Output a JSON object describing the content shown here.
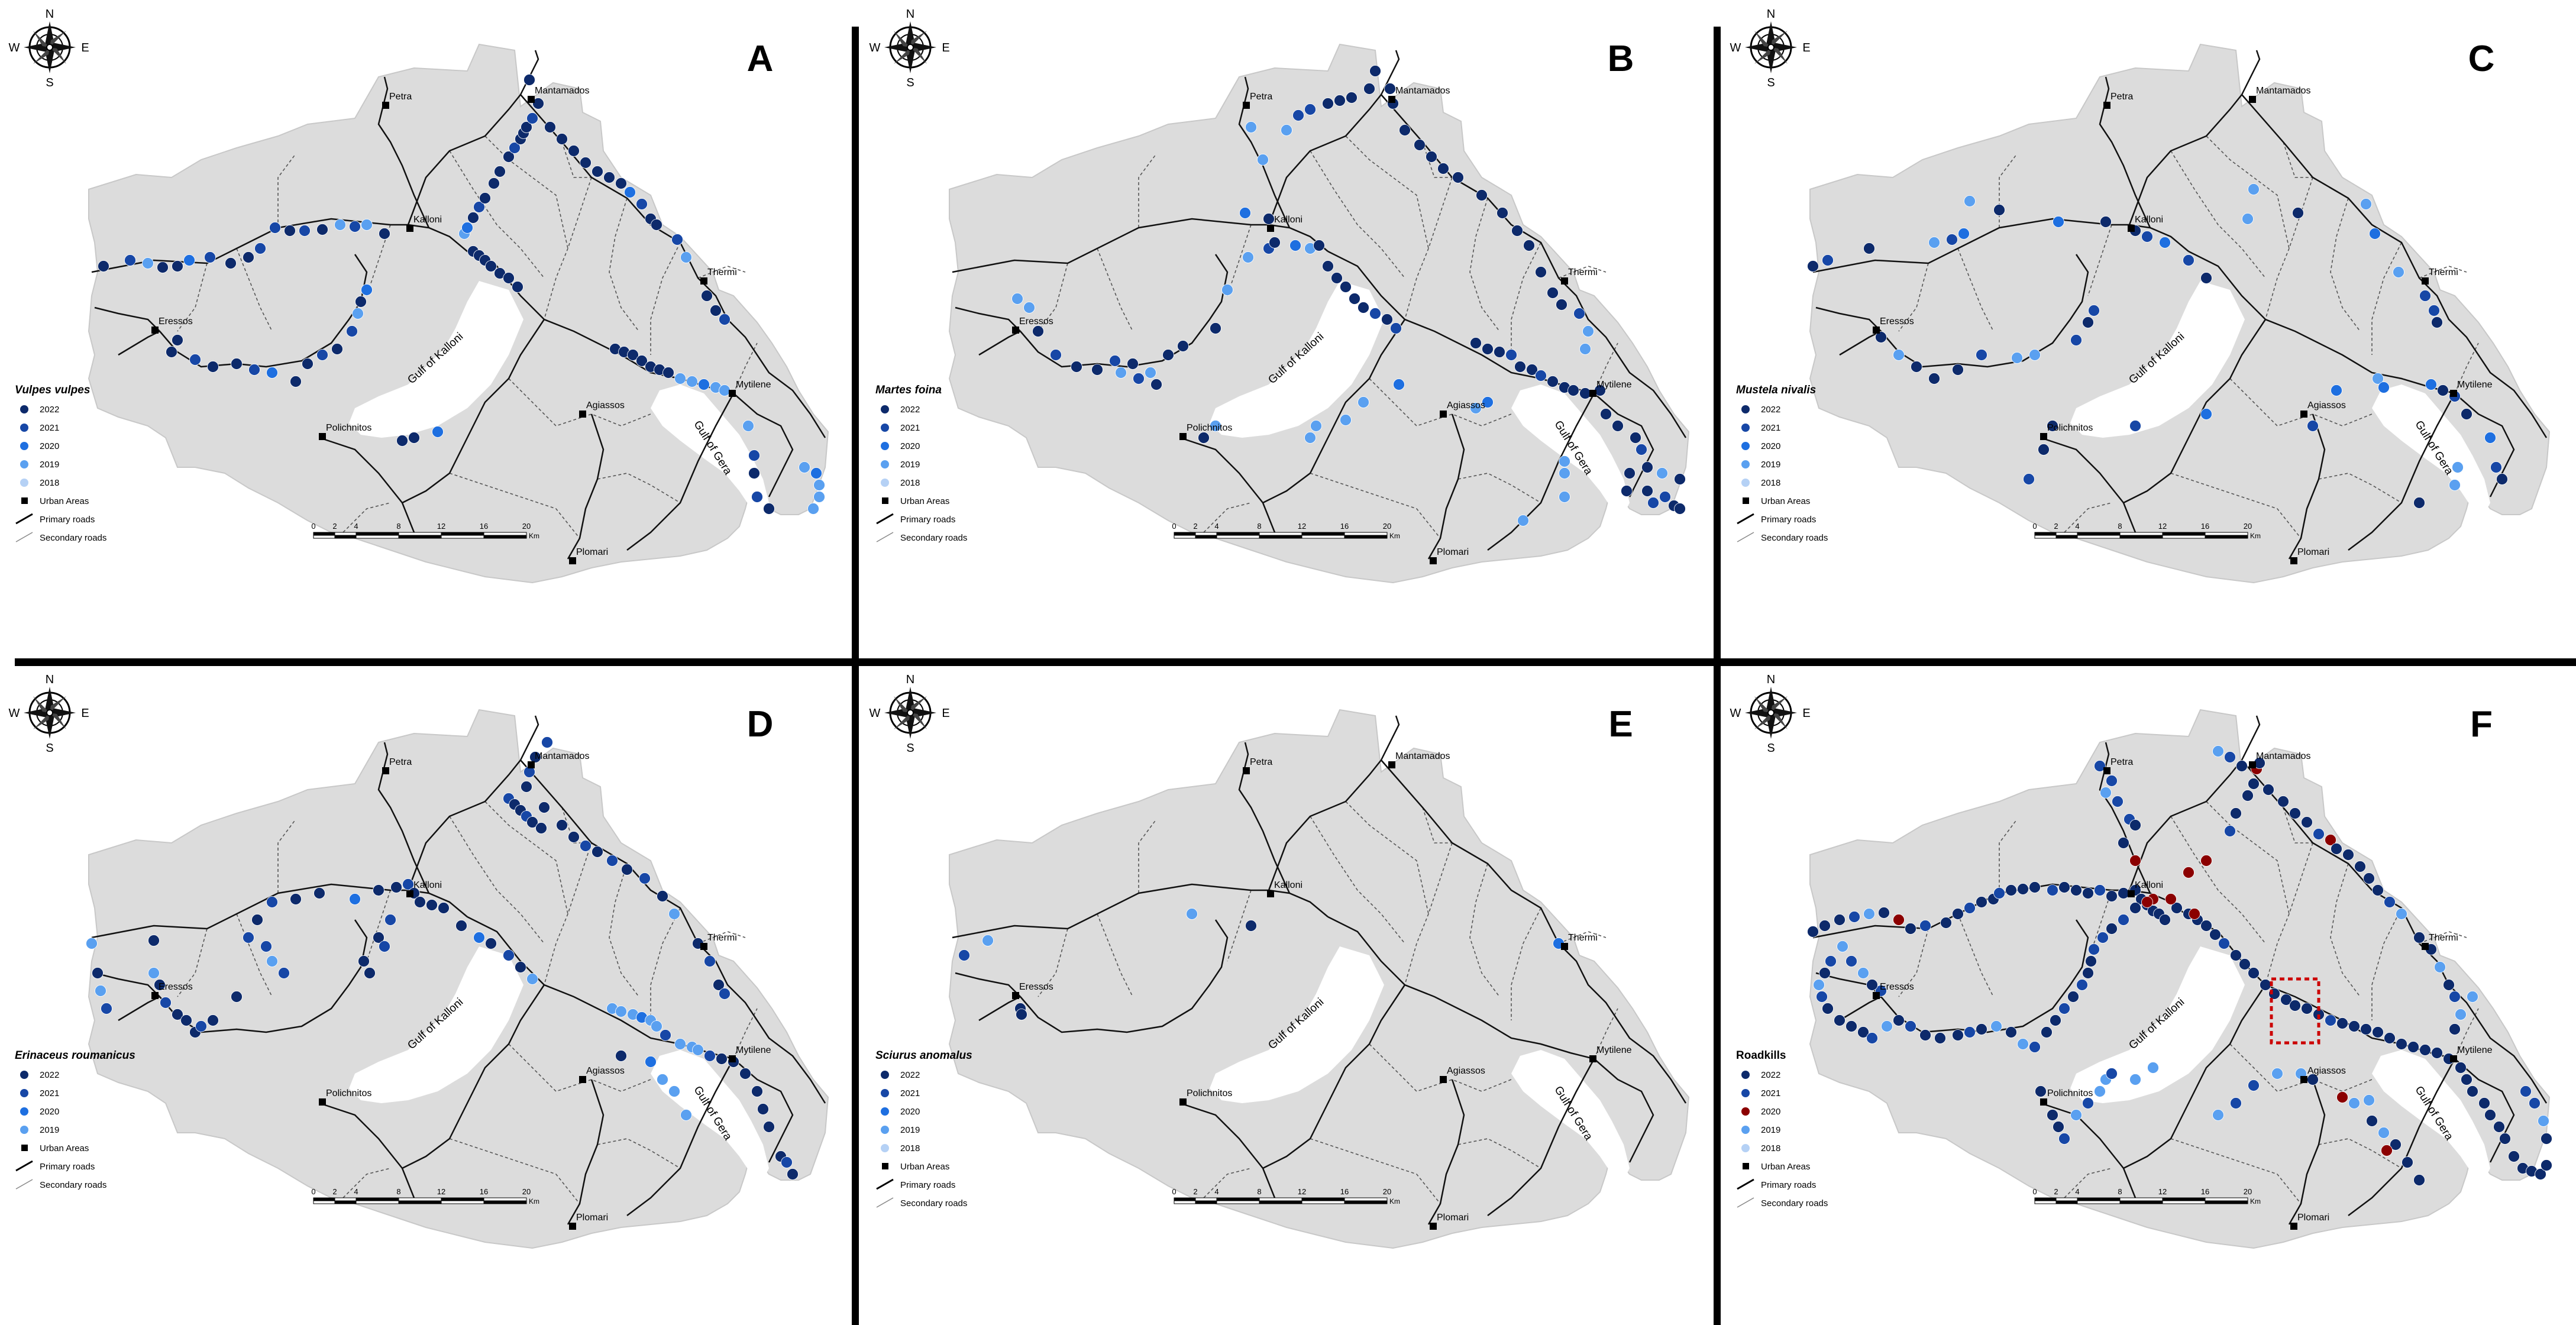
{
  "figure": {
    "panels": [
      {
        "letter": "A",
        "species": "Vulpes vulpes",
        "legend_entries": [
          {
            "label": "2022",
            "color": "#0d2a6b"
          },
          {
            "label": "2021",
            "color": "#1747a6"
          },
          {
            "label": "2020",
            "color": "#1e6fe0"
          },
          {
            "label": "2019",
            "color": "#5aa0f0"
          },
          {
            "label": "2018",
            "color": "#b5d1f5"
          }
        ]
      },
      {
        "letter": "B",
        "species": "Martes foina",
        "legend_entries": [
          {
            "label": "2022",
            "color": "#0d2a6b"
          },
          {
            "label": "2021",
            "color": "#1747a6"
          },
          {
            "label": "2020",
            "color": "#1e6fe0"
          },
          {
            "label": "2019",
            "color": "#5aa0f0"
          },
          {
            "label": "2018",
            "color": "#b5d1f5"
          }
        ]
      },
      {
        "letter": "C",
        "species": "Mustela nivalis",
        "legend_entries": [
          {
            "label": "2022",
            "color": "#0d2a6b"
          },
          {
            "label": "2021",
            "color": "#1747a6"
          },
          {
            "label": "2020",
            "color": "#1e6fe0"
          },
          {
            "label": "2019",
            "color": "#5aa0f0"
          },
          {
            "label": "2018",
            "color": "#b5d1f5"
          }
        ]
      },
      {
        "letter": "D",
        "species": "Erinaceus roumanicus",
        "legend_entries": [
          {
            "label": "2022",
            "color": "#0d2a6b"
          },
          {
            "label": "2021",
            "color": "#1747a6"
          },
          {
            "label": "2020",
            "color": "#1e6fe0"
          },
          {
            "label": "2019",
            "color": "#5aa0f0"
          }
        ]
      },
      {
        "letter": "E",
        "species": "Sciurus anomalus",
        "legend_entries": [
          {
            "label": "2022",
            "color": "#0d2a6b"
          },
          {
            "label": "2021",
            "color": "#1747a6"
          },
          {
            "label": "2020",
            "color": "#1e6fe0"
          },
          {
            "label": "2019",
            "color": "#5aa0f0"
          },
          {
            "label": "2018",
            "color": "#b5d1f5"
          }
        ]
      },
      {
        "letter": "F",
        "species": "Roadkills",
        "legend_entries": [
          {
            "label": "2022",
            "color": "#0d2a6b"
          },
          {
            "label": "2021",
            "color": "#1747a6"
          },
          {
            "label": "2020",
            "color": "#8b0000"
          },
          {
            "label": "2019",
            "color": "#5aa0f0"
          },
          {
            "label": "2018",
            "color": "#b5d1f5"
          }
        ]
      }
    ],
    "legend_static": {
      "urban": "Urban Areas",
      "primary": "Primary roads",
      "secondary": "Secondary roads"
    },
    "compass": {
      "n": "N",
      "s": "S",
      "e": "E",
      "w": "W"
    },
    "scale_labels": [
      "0",
      "2",
      "4",
      "8",
      "12",
      "16",
      "20"
    ],
    "scale_unit": "Km",
    "places": [
      "Petra",
      "Mantamados",
      "Kalloni",
      "Thermi",
      "Eressos",
      "Mytilene",
      "Polichnitos",
      "Agiassos",
      "Plomari"
    ],
    "gulfs": {
      "kalloni": "Gulf of Kalloni",
      "gera": "Gulf of Gera"
    },
    "colors": {
      "land": "#dcdcdc",
      "primary_road": "#111111",
      "secondary_road": "#555555",
      "hotspot": "#cc0000"
    }
  }
}
